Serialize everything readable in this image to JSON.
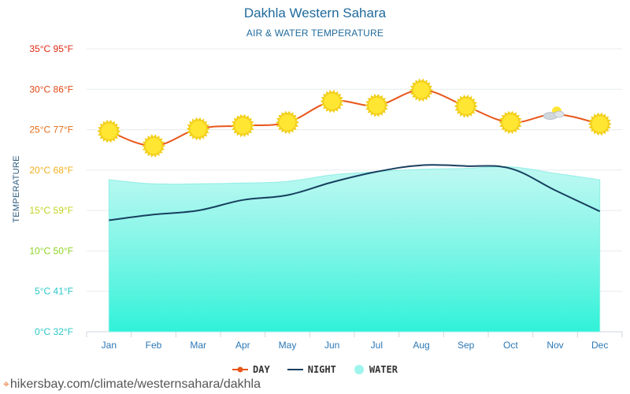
{
  "header": {
    "title": "Dakhla Western Sahara",
    "subtitle": "AIR & WATER TEMPERATURE"
  },
  "footer": {
    "url": "hikersbay.com/climate/westernsahara/dakhla"
  },
  "legend": {
    "day_label": "DAY",
    "night_label": "NIGHT",
    "water_label": "WATER"
  },
  "colors": {
    "day": "#e8561a",
    "night": "#17405f",
    "water_top": "#a8f6ee",
    "water_bottom": "#2ff2d8",
    "sun": "#ffe633"
  },
  "chart_data": {
    "type": "line",
    "title": "Dakhla Western Sahara",
    "subtitle": "AIR & WATER TEMPERATURE",
    "ylabel": "TEMPERATURE",
    "xlabel": "",
    "categories": [
      "Jan",
      "Feb",
      "Mar",
      "Apr",
      "May",
      "Jun",
      "Jul",
      "Aug",
      "Sep",
      "Oct",
      "Nov",
      "Dec"
    ],
    "ylim": [
      0,
      35
    ],
    "y_ticks": [
      {
        "value": 0,
        "label": "0°C 32°F",
        "color": "#2ac7c7"
      },
      {
        "value": 5,
        "label": "5°C 41°F",
        "color": "#2ac7c7"
      },
      {
        "value": 10,
        "label": "10°C 50°F",
        "color": "#8ed321"
      },
      {
        "value": 15,
        "label": "15°C 59°F",
        "color": "#c2d321"
      },
      {
        "value": 20,
        "label": "20°C 68°F",
        "color": "#f0b020"
      },
      {
        "value": 25,
        "label": "25°C 77°F",
        "color": "#e36e18"
      },
      {
        "value": 30,
        "label": "30°C 86°F",
        "color": "#e04a16"
      },
      {
        "value": 35,
        "label": "35°C 95°F",
        "color": "#e02a14"
      }
    ],
    "grid": true,
    "legend_position": "bottom",
    "series": [
      {
        "name": "DAY",
        "values": [
          24.8,
          23.0,
          25.1,
          25.5,
          25.9,
          28.5,
          28.0,
          29.9,
          27.9,
          25.9,
          26.9,
          25.7
        ]
      },
      {
        "name": "NIGHT",
        "values": [
          13.8,
          14.5,
          15.0,
          16.3,
          16.9,
          18.5,
          19.8,
          20.6,
          20.5,
          20.2,
          17.5,
          14.9
        ]
      },
      {
        "name": "WATER",
        "values": [
          18.8,
          18.3,
          18.3,
          18.4,
          18.6,
          19.4,
          19.8,
          20.1,
          20.2,
          20.4,
          19.6,
          18.8
        ]
      }
    ],
    "day_icons": [
      "sun",
      "sun",
      "sun",
      "sun",
      "sun",
      "sun",
      "sun",
      "sun",
      "sun",
      "sun",
      "partly-cloudy",
      "sun"
    ]
  }
}
